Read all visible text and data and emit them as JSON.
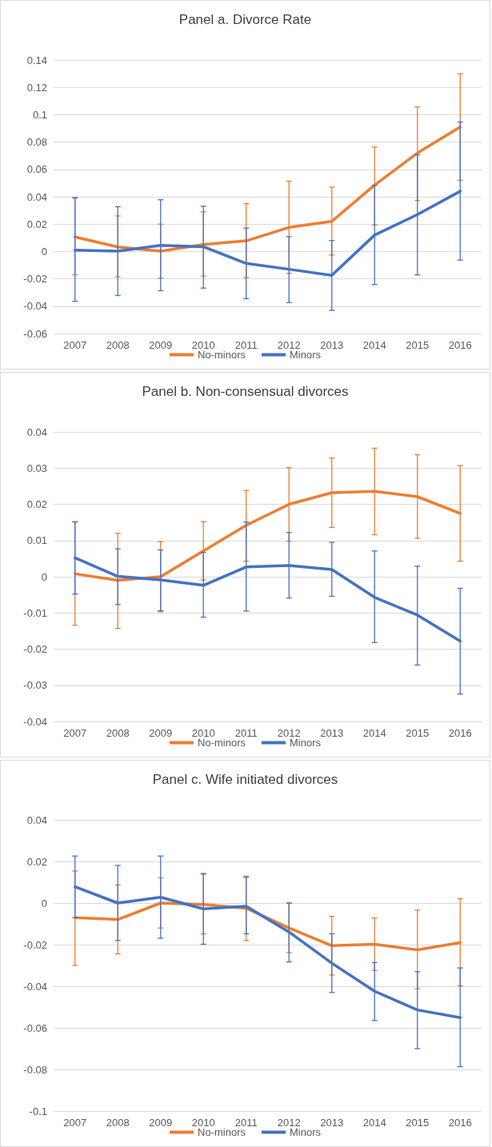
{
  "chart_data": [
    {
      "type": "line",
      "title": "Panel a. Divorce Rate",
      "categories": [
        "2007",
        "2008",
        "2009",
        "2010",
        "2011",
        "2012",
        "2013",
        "2014",
        "2015",
        "2016"
      ],
      "ylim": [
        -0.06,
        0.14
      ],
      "yticks": [
        -0.06,
        -0.04,
        -0.02,
        0,
        0.02,
        0.04,
        0.06,
        0.08,
        0.1,
        0.12,
        0.14
      ],
      "grid": "y",
      "legend": "bottom",
      "marker": "none",
      "series": [
        {
          "name": "No-minors",
          "color": "#ed7d31",
          "values": [
            0.0106,
            0.0033,
            0.0002,
            0.005,
            0.0078,
            0.0176,
            0.022,
            0.0486,
            0.072,
            0.091
          ],
          "errors": [
            [
              -0.017,
              0.039
            ],
            [
              -0.0186,
              0.026
            ],
            [
              -0.0195,
              0.02
            ],
            [
              -0.018,
              0.029
            ],
            [
              -0.019,
              0.035
            ],
            [
              -0.016,
              0.0514
            ],
            [
              -0.0026,
              0.047
            ],
            [
              0.0193,
              0.0763
            ],
            [
              0.0373,
              0.1057
            ],
            [
              0.052,
              0.13
            ]
          ]
        },
        {
          "name": "Minors",
          "color": "#4472c4",
          "values": [
            0.001,
            0.0002,
            0.0045,
            0.0035,
            -0.0087,
            -0.013,
            -0.0174,
            0.012,
            0.027,
            0.044
          ],
          "errors": [
            [
              -0.0364,
              0.0395
            ],
            [
              -0.0322,
              0.0327
            ],
            [
              -0.0287,
              0.0378
            ],
            [
              -0.0268,
              0.0331
            ],
            [
              -0.0345,
              0.0171
            ],
            [
              -0.0374,
              0.0108
            ],
            [
              -0.043,
              0.008
            ],
            [
              -0.0242,
              0.0484
            ],
            [
              -0.0171,
              0.0707
            ],
            [
              -0.0063,
              0.0947
            ]
          ]
        }
      ]
    },
    {
      "type": "line",
      "title": "Panel b. Non-consensual divorces",
      "categories": [
        "2007",
        "2008",
        "2009",
        "2010",
        "2011",
        "2012",
        "2013",
        "2014",
        "2015",
        "2016"
      ],
      "ylim": [
        -0.04,
        0.04
      ],
      "yticks": [
        -0.04,
        -0.03,
        -0.02,
        -0.01,
        0,
        0.01,
        0.02,
        0.03,
        0.04
      ],
      "grid": "y",
      "legend": "bottom",
      "marker": "none",
      "series": [
        {
          "name": "No-minors",
          "color": "#ed7d31",
          "values": [
            0.0008,
            -0.001,
            0,
            0.0071,
            0.0142,
            0.02,
            0.0232,
            0.0236,
            0.0221,
            0.0175
          ],
          "errors": [
            [
              -0.0134,
              0.0151
            ],
            [
              -0.0143,
              0.012
            ],
            [
              -0.0097,
              0.0097
            ],
            [
              -0.0009,
              0.0152
            ],
            [
              0.0043,
              0.0238
            ],
            [
              0.0098,
              0.0301
            ],
            [
              0.0136,
              0.0328
            ],
            [
              0.0116,
              0.0355
            ],
            [
              0.0106,
              0.0337
            ],
            [
              0.0043,
              0.0307
            ]
          ]
        },
        {
          "name": "Minors",
          "color": "#4472c4",
          "values": [
            0.0052,
            0.0001,
            -0.0009,
            -0.0024,
            0.0027,
            0.0031,
            0.002,
            -0.0057,
            -0.0106,
            -0.0178
          ],
          "errors": [
            [
              -0.0048,
              0.0152
            ],
            [
              -0.0077,
              0.0077
            ],
            [
              -0.0094,
              0.0074
            ],
            [
              -0.0112,
              0.0067
            ],
            [
              -0.0095,
              0.0151
            ],
            [
              -0.0059,
              0.0122
            ],
            [
              -0.0054,
              0.0095
            ],
            [
              -0.0182,
              0.0071
            ],
            [
              -0.0244,
              0.0029
            ],
            [
              -0.0324,
              -0.0032
            ]
          ]
        }
      ]
    },
    {
      "type": "line",
      "title": "Panel c. Wife initiated divorces",
      "categories": [
        "2007",
        "2008",
        "2009",
        "2010",
        "2011",
        "2012",
        "2013",
        "2014",
        "2015",
        "2016"
      ],
      "ylim": [
        -0.1,
        0.04
      ],
      "yticks": [
        -0.1,
        -0.08,
        -0.06,
        -0.04,
        -0.02,
        0,
        0.02,
        0.04
      ],
      "grid": "y",
      "legend": "bottom",
      "marker": "none",
      "series": [
        {
          "name": "No-minors",
          "color": "#ed7d31",
          "values": [
            -0.007,
            -0.0079,
            0,
            -0.0007,
            -0.0025,
            -0.012,
            -0.0205,
            -0.0198,
            -0.0225,
            -0.019
          ],
          "errors": [
            [
              -0.03,
              0.0154
            ],
            [
              -0.0244,
              0.0087
            ],
            [
              -0.012,
              0.0121
            ],
            [
              -0.0148,
              0.0139
            ],
            [
              -0.018,
              0.013
            ],
            [
              -0.0238,
              0
            ],
            [
              -0.0346,
              -0.0064
            ],
            [
              -0.0324,
              -0.0072
            ],
            [
              -0.0412,
              -0.0034
            ],
            [
              -0.0398,
              0.0021
            ]
          ]
        },
        {
          "name": "Minors",
          "color": "#4472c4",
          "values": [
            0.0078,
            0,
            0.0028,
            -0.0028,
            -0.0015,
            -0.0139,
            -0.0289,
            -0.0424,
            -0.0514,
            -0.0551
          ],
          "errors": [
            [
              -0.007,
              0.0226
            ],
            [
              -0.018,
              0.0181
            ],
            [
              -0.0169,
              0.0226
            ],
            [
              -0.0198,
              0.0142
            ],
            [
              -0.0148,
              0.0124
            ],
            [
              -0.0283,
              0
            ],
            [
              -0.043,
              -0.0148
            ],
            [
              -0.0565,
              -0.0286
            ],
            [
              -0.07,
              -0.033
            ],
            [
              -0.0787,
              -0.0312
            ]
          ]
        }
      ]
    }
  ]
}
